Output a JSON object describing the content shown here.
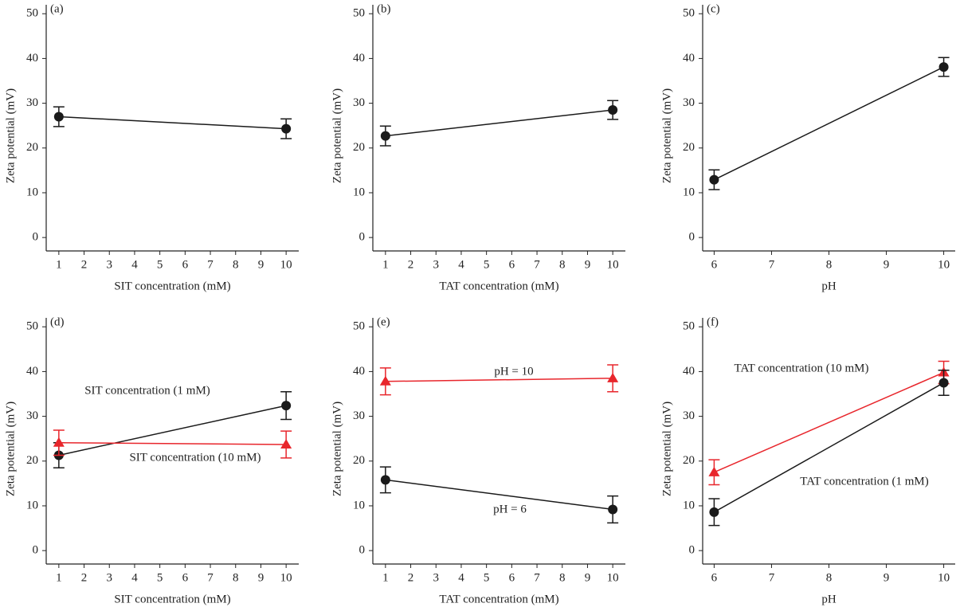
{
  "chart_data": [
    {
      "type": "line",
      "label": "(a)",
      "xlabel": "SIT concentration (mM)",
      "ylabel": "Zeta potential (mV)",
      "xlim": [
        0.5,
        10.5
      ],
      "ylim": [
        -3,
        52
      ],
      "xticks": [
        1,
        2,
        3,
        4,
        5,
        6,
        7,
        8,
        9,
        10
      ],
      "yticks": [
        0,
        10,
        20,
        30,
        40,
        50
      ],
      "x": [
        1,
        10
      ],
      "series": [
        {
          "color": "#1a1a1a",
          "marker": "circle",
          "values": [
            27.0,
            24.3
          ],
          "errors": [
            2.2,
            2.2
          ]
        }
      ]
    },
    {
      "type": "line",
      "label": "(b)",
      "xlabel": "TAT concentration (mM)",
      "ylabel": "Zeta potential (mV)",
      "xlim": [
        0.5,
        10.5
      ],
      "ylim": [
        -3,
        52
      ],
      "xticks": [
        1,
        2,
        3,
        4,
        5,
        6,
        7,
        8,
        9,
        10
      ],
      "yticks": [
        0,
        10,
        20,
        30,
        40,
        50
      ],
      "x": [
        1,
        10
      ],
      "series": [
        {
          "color": "#1a1a1a",
          "marker": "circle",
          "values": [
            22.7,
            28.5
          ],
          "errors": [
            2.2,
            2.1
          ]
        }
      ]
    },
    {
      "type": "line",
      "label": "(c)",
      "xlabel": "pH",
      "ylabel": "Zeta potential (mV)",
      "xlim": [
        5.8,
        10.2
      ],
      "ylim": [
        -3,
        52
      ],
      "xticks": [
        6,
        7,
        8,
        9,
        10
      ],
      "yticks": [
        0,
        10,
        20,
        30,
        40,
        50
      ],
      "x": [
        6,
        10
      ],
      "series": [
        {
          "color": "#1a1a1a",
          "marker": "circle",
          "values": [
            12.9,
            38.1
          ],
          "errors": [
            2.2,
            2.1
          ]
        }
      ]
    },
    {
      "type": "line",
      "label": "(d)",
      "xlabel": "SIT concentration (mM)",
      "ylabel": "Zeta potential (mV)",
      "xlim": [
        0.5,
        10.5
      ],
      "ylim": [
        -3,
        52
      ],
      "xticks": [
        1,
        2,
        3,
        4,
        5,
        6,
        7,
        8,
        9,
        10
      ],
      "yticks": [
        0,
        10,
        20,
        30,
        40,
        50
      ],
      "x": [
        1,
        10
      ],
      "series": [
        {
          "name": "SIT concentration (1 mM)",
          "color": "#1a1a1a",
          "marker": "circle",
          "values": [
            21.3,
            32.4
          ],
          "errors": [
            2.8,
            3.1
          ]
        },
        {
          "name": "SIT concentration (10 mM)",
          "color": "#e8262c",
          "marker": "triangle",
          "values": [
            24.1,
            23.7
          ],
          "errors": [
            2.8,
            3.0
          ]
        }
      ]
    },
    {
      "type": "line",
      "label": "(e)",
      "xlabel": "TAT concentration (mM)",
      "ylabel": "Zeta potential (mV)",
      "xlim": [
        0.5,
        10.5
      ],
      "ylim": [
        -3,
        52
      ],
      "xticks": [
        1,
        2,
        3,
        4,
        5,
        6,
        7,
        8,
        9,
        10
      ],
      "yticks": [
        0,
        10,
        20,
        30,
        40,
        50
      ],
      "x": [
        1,
        10
      ],
      "series": [
        {
          "name": "pH = 10",
          "color": "#e8262c",
          "marker": "triangle",
          "values": [
            37.8,
            38.5
          ],
          "errors": [
            3.0,
            3.0
          ]
        },
        {
          "name": "pH = 6",
          "color": "#1a1a1a",
          "marker": "circle",
          "values": [
            15.8,
            9.2
          ],
          "errors": [
            2.9,
            3.0
          ]
        }
      ]
    },
    {
      "type": "line",
      "label": "(f)",
      "xlabel": "pH",
      "ylabel": "Zeta potential (mV)",
      "xlim": [
        5.8,
        10.2
      ],
      "ylim": [
        -3,
        52
      ],
      "xticks": [
        6,
        7,
        8,
        9,
        10
      ],
      "yticks": [
        0,
        10,
        20,
        30,
        40,
        50
      ],
      "x": [
        6,
        10
      ],
      "series": [
        {
          "name": "TAT concentration (10 mM)",
          "color": "#e8262c",
          "marker": "triangle",
          "values": [
            17.5,
            39.8
          ],
          "errors": [
            2.8,
            2.5
          ]
        },
        {
          "name": "TAT concentration (1 mM)",
          "color": "#1a1a1a",
          "marker": "circle",
          "values": [
            8.6,
            37.5
          ],
          "errors": [
            3.0,
            2.8
          ]
        }
      ]
    }
  ]
}
